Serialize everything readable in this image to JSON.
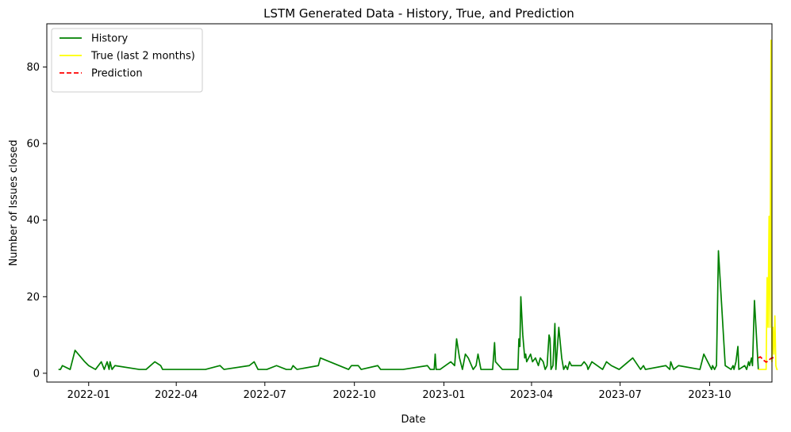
{
  "chart_data": {
    "type": "line",
    "title": "LSTM Generated Data - History, True, and Prediction",
    "xlabel": "Date",
    "ylabel": "Number of Issues closed",
    "xlim": [
      "2021-11-19",
      "2023-12-04"
    ],
    "ylim": [
      -2.3,
      91.3
    ],
    "x_ticks": [
      "2022-01-01",
      "2022-04-01",
      "2022-07-01",
      "2022-10-01",
      "2023-01-01",
      "2023-04-01",
      "2023-07-01",
      "2023-10-01"
    ],
    "x_tick_labels": [
      "2022-01",
      "2022-04",
      "2022-07",
      "2022-10",
      "2023-01",
      "2023-04",
      "2023-07",
      "2023-10"
    ],
    "y_ticks": [
      0,
      20,
      40,
      60,
      80
    ],
    "y_tick_labels": [
      "0",
      "20",
      "40",
      "60",
      "80"
    ],
    "grid": false,
    "legend": "top-left",
    "series": [
      {
        "name": "History",
        "color": "#008000",
        "style": "solid",
        "points": [
          [
            "2021-12-01",
            1
          ],
          [
            "2021-12-03",
            1
          ],
          [
            "2021-12-05",
            2
          ],
          [
            "2021-12-13",
            1
          ],
          [
            "2021-12-18",
            6
          ],
          [
            "2021-12-28",
            3
          ],
          [
            "2022-01-01",
            2
          ],
          [
            "2022-01-08",
            1
          ],
          [
            "2022-01-14",
            3
          ],
          [
            "2022-01-17",
            1
          ],
          [
            "2022-01-20",
            3
          ],
          [
            "2022-01-22",
            1
          ],
          [
            "2022-01-23",
            3
          ],
          [
            "2022-01-25",
            1
          ],
          [
            "2022-01-28",
            2
          ],
          [
            "2022-02-22",
            1
          ],
          [
            "2022-03-01",
            1
          ],
          [
            "2022-03-10",
            3
          ],
          [
            "2022-03-16",
            2
          ],
          [
            "2022-03-18",
            1
          ],
          [
            "2022-05-01",
            1
          ],
          [
            "2022-05-16",
            2
          ],
          [
            "2022-05-20",
            1
          ],
          [
            "2022-06-15",
            2
          ],
          [
            "2022-06-20",
            3
          ],
          [
            "2022-06-24",
            1
          ],
          [
            "2022-07-03",
            1
          ],
          [
            "2022-07-13",
            2
          ],
          [
            "2022-07-23",
            1
          ],
          [
            "2022-07-28",
            1
          ],
          [
            "2022-07-30",
            2
          ],
          [
            "2022-08-03",
            1
          ],
          [
            "2022-08-25",
            2
          ],
          [
            "2022-08-27",
            4
          ],
          [
            "2022-09-25",
            1
          ],
          [
            "2022-09-28",
            2
          ],
          [
            "2022-10-05",
            2
          ],
          [
            "2022-10-08",
            1
          ],
          [
            "2022-10-25",
            2
          ],
          [
            "2022-10-28",
            1
          ],
          [
            "2022-11-20",
            1
          ],
          [
            "2022-12-15",
            2
          ],
          [
            "2022-12-18",
            1
          ],
          [
            "2022-12-22",
            1
          ],
          [
            "2022-12-23",
            5
          ],
          [
            "2022-12-24",
            1
          ],
          [
            "2022-12-28",
            1
          ],
          [
            "2023-01-08",
            3
          ],
          [
            "2023-01-12",
            2
          ],
          [
            "2023-01-14",
            9
          ],
          [
            "2023-01-17",
            4
          ],
          [
            "2023-01-20",
            1
          ],
          [
            "2023-01-23",
            5
          ],
          [
            "2023-01-26",
            4
          ],
          [
            "2023-01-31",
            1
          ],
          [
            "2023-02-03",
            2
          ],
          [
            "2023-02-05",
            5
          ],
          [
            "2023-02-08",
            1
          ],
          [
            "2023-02-20",
            1
          ],
          [
            "2023-02-22",
            8
          ],
          [
            "2023-02-23",
            3
          ],
          [
            "2023-03-02",
            1
          ],
          [
            "2023-03-18",
            1
          ],
          [
            "2023-03-19",
            9
          ],
          [
            "2023-03-20",
            7
          ],
          [
            "2023-03-21",
            20
          ],
          [
            "2023-03-23",
            10
          ],
          [
            "2023-03-25",
            4
          ],
          [
            "2023-03-26",
            5
          ],
          [
            "2023-03-27",
            3
          ],
          [
            "2023-03-29",
            4
          ],
          [
            "2023-03-31",
            5
          ],
          [
            "2023-04-02",
            3
          ],
          [
            "2023-04-05",
            4
          ],
          [
            "2023-04-08",
            2
          ],
          [
            "2023-04-10",
            4
          ],
          [
            "2023-04-13",
            3
          ],
          [
            "2023-04-15",
            1
          ],
          [
            "2023-04-17",
            2
          ],
          [
            "2023-04-19",
            10
          ],
          [
            "2023-04-20",
            9
          ],
          [
            "2023-04-21",
            1
          ],
          [
            "2023-04-23",
            2
          ],
          [
            "2023-04-25",
            13
          ],
          [
            "2023-04-26",
            1
          ],
          [
            "2023-04-29",
            12
          ],
          [
            "2023-05-02",
            4
          ],
          [
            "2023-05-04",
            1
          ],
          [
            "2023-05-06",
            2
          ],
          [
            "2023-05-08",
            1
          ],
          [
            "2023-05-10",
            3
          ],
          [
            "2023-05-12",
            2
          ],
          [
            "2023-05-22",
            2
          ],
          [
            "2023-05-25",
            3
          ],
          [
            "2023-05-28",
            2
          ],
          [
            "2023-05-29",
            1
          ],
          [
            "2023-06-02",
            3
          ],
          [
            "2023-06-13",
            1
          ],
          [
            "2023-06-17",
            3
          ],
          [
            "2023-06-22",
            2
          ],
          [
            "2023-06-30",
            1
          ],
          [
            "2023-07-14",
            4
          ],
          [
            "2023-07-22",
            1
          ],
          [
            "2023-07-25",
            2
          ],
          [
            "2023-07-27",
            1
          ],
          [
            "2023-08-17",
            2
          ],
          [
            "2023-08-21",
            1
          ],
          [
            "2023-08-22",
            3
          ],
          [
            "2023-08-25",
            1
          ],
          [
            "2023-08-30",
            2
          ],
          [
            "2023-09-21",
            1
          ],
          [
            "2023-09-25",
            5
          ],
          [
            "2023-10-03",
            1
          ],
          [
            "2023-10-04",
            2
          ],
          [
            "2023-10-06",
            1
          ],
          [
            "2023-10-08",
            2
          ],
          [
            "2023-10-10",
            32
          ],
          [
            "2023-10-17",
            2
          ],
          [
            "2023-10-23",
            1
          ],
          [
            "2023-10-25",
            2
          ],
          [
            "2023-10-26",
            1
          ],
          [
            "2023-10-28",
            3
          ],
          [
            "2023-10-30",
            7
          ],
          [
            "2023-10-31",
            1
          ],
          [
            "2023-11-06",
            2
          ],
          [
            "2023-11-08",
            1
          ],
          [
            "2023-11-10",
            3
          ],
          [
            "2023-11-11",
            2
          ],
          [
            "2023-11-13",
            4
          ],
          [
            "2023-11-14",
            2
          ],
          [
            "2023-11-16",
            19
          ],
          [
            "2023-11-20",
            1
          ]
        ]
      },
      {
        "name": "True (last 2 months)",
        "color": "#ffff00",
        "style": "solid",
        "points": [
          [
            "2023-11-20",
            1
          ],
          [
            "2023-11-28",
            1
          ],
          [
            "2023-11-29",
            25
          ],
          [
            "2023-11-30",
            12
          ],
          [
            "2023-12-01",
            41
          ],
          [
            "2023-12-02",
            12
          ],
          [
            "2023-12-03",
            87
          ],
          [
            "2023-12-04",
            3
          ],
          [
            "2023-12-05",
            12
          ],
          [
            "2023-12-06",
            5
          ],
          [
            "2023-12-07",
            15
          ],
          [
            "2023-12-08",
            2
          ],
          [
            "2023-12-09",
            1
          ],
          [
            "2023-12-10",
            1
          ]
        ]
      },
      {
        "name": "Prediction",
        "color": "#ff0000",
        "style": "dashed",
        "points": [
          [
            "2023-11-20",
            4
          ],
          [
            "2023-11-22",
            4.3
          ],
          [
            "2023-11-24",
            3.8
          ],
          [
            "2023-11-26",
            3.3
          ],
          [
            "2023-11-28",
            2.9
          ],
          [
            "2023-11-30",
            3.2
          ],
          [
            "2023-12-02",
            3.7
          ],
          [
            "2023-12-04",
            4
          ],
          [
            "2023-12-06",
            4.1
          ],
          [
            "2023-12-08",
            4
          ]
        ]
      }
    ]
  }
}
